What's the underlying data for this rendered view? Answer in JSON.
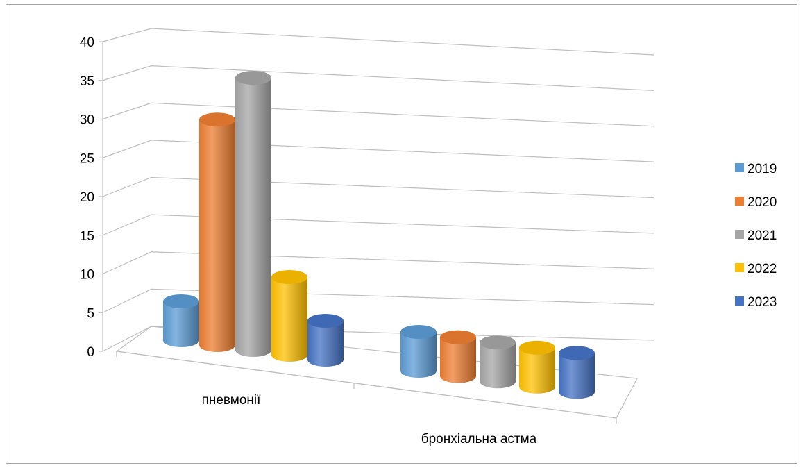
{
  "chart_data": {
    "type": "bar",
    "variant": "3d-cylinder",
    "title": "",
    "xlabel": "",
    "ylabel": "",
    "categories": [
      "пневмонії",
      "бронхіальна астма"
    ],
    "series": [
      {
        "name": "2019",
        "values": [
          5,
          5
        ],
        "color": "#5b9bd5"
      },
      {
        "name": "2020",
        "values": [
          29,
          5
        ],
        "color": "#ed7d31"
      },
      {
        "name": "2021",
        "values": [
          35,
          5
        ],
        "color": "#a5a5a5"
      },
      {
        "name": "2022",
        "values": [
          10,
          5
        ],
        "color": "#ffc000"
      },
      {
        "name": "2023",
        "values": [
          5,
          5
        ],
        "color": "#4472c4"
      }
    ],
    "yticks": [
      "0",
      "5",
      "10",
      "15",
      "20",
      "25",
      "30",
      "35",
      "40"
    ],
    "ylim": [
      0,
      40
    ],
    "grid": true,
    "legend": "right"
  }
}
